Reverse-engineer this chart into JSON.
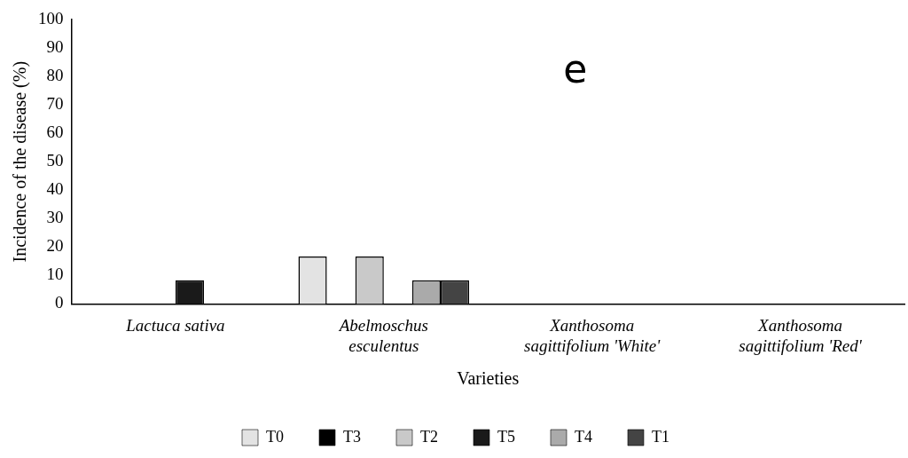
{
  "chart_data": {
    "type": "bar",
    "ylabel": "Incidence of the disease (%)",
    "xlabel": "Varieties",
    "annotations": [
      "e"
    ],
    "categories": [
      "Lactuca sativa",
      "Abelmoschus esculentus",
      "Xanthosoma sagittifolium 'White'",
      "Xanthosoma sagittifolium 'Red'"
    ],
    "series": [
      {
        "name": "T0",
        "color": "#e3e3e3",
        "values": [
          null,
          16.7,
          0,
          null
        ]
      },
      {
        "name": "T3",
        "color": "#000000",
        "values": [
          null,
          null,
          null,
          0
        ]
      },
      {
        "name": "T2",
        "color": "#c9c9c9",
        "values": [
          null,
          16.7,
          null,
          0
        ]
      },
      {
        "name": "T5",
        "color": "#1a1a1a",
        "values": [
          8.3,
          null,
          null,
          null
        ]
      },
      {
        "name": "T4",
        "color": "#aaaaaa",
        "values": [
          null,
          8.3,
          0,
          null
        ]
      },
      {
        "name": "T1",
        "color": "#444444",
        "values": [
          null,
          8.3,
          null,
          null
        ]
      }
    ],
    "ylim": [
      0,
      100
    ],
    "yticks": [
      0,
      10,
      20,
      30,
      40,
      50,
      60,
      70,
      80,
      90,
      100
    ],
    "grid": false,
    "legend": "bottom"
  }
}
